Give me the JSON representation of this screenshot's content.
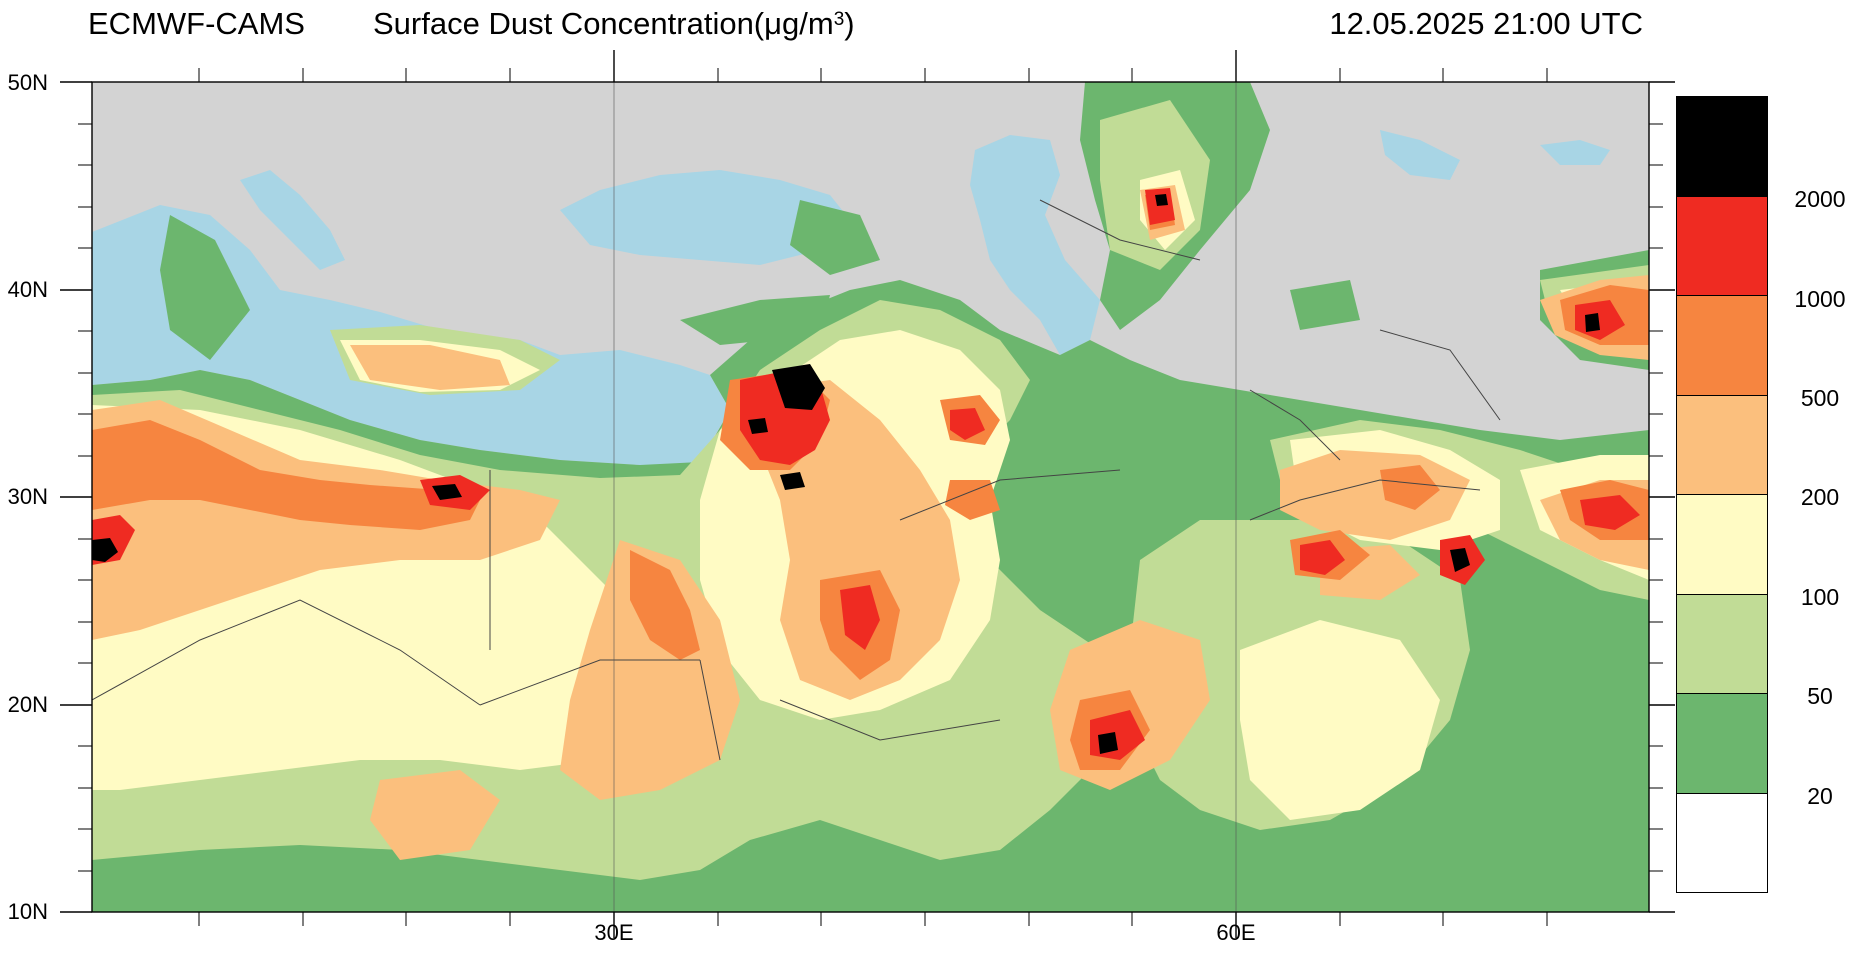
{
  "header": {
    "source": "ECMWF-CAMS",
    "variable_prefix": "Surface Dust Concentration(",
    "unit_main": "μg/m",
    "unit_exp": "3",
    "unit_close": ")",
    "datetime": "12.05.2025 21:00 UTC"
  },
  "axes": {
    "lat_labels": [
      "50N",
      "40N",
      "30N",
      "20N",
      "10N"
    ],
    "lon_labels": [
      "30E",
      "60E"
    ]
  },
  "legend": {
    "levels": [
      "2000",
      "1000",
      "500",
      "200",
      "100",
      "50",
      "20"
    ],
    "colors": [
      "#000000",
      "#ef2b22",
      "#f68540",
      "#fbbf7d",
      "#fffbc4",
      "#c1dc96",
      "#6cb66e",
      "#ffffff"
    ]
  },
  "map_colors": {
    "land_no_data": "#d3d3d3",
    "water": "#a8d5e5",
    "c20": "#6cb66e",
    "c50": "#c1dc96",
    "c100": "#fffbc4",
    "c200": "#fbbf7d",
    "c500": "#f68540",
    "c1000": "#ef2b22",
    "c2000": "#000000"
  },
  "extent": {
    "lon_min": 5,
    "lon_max": 80,
    "lat_min": 10,
    "lat_max": 50
  }
}
